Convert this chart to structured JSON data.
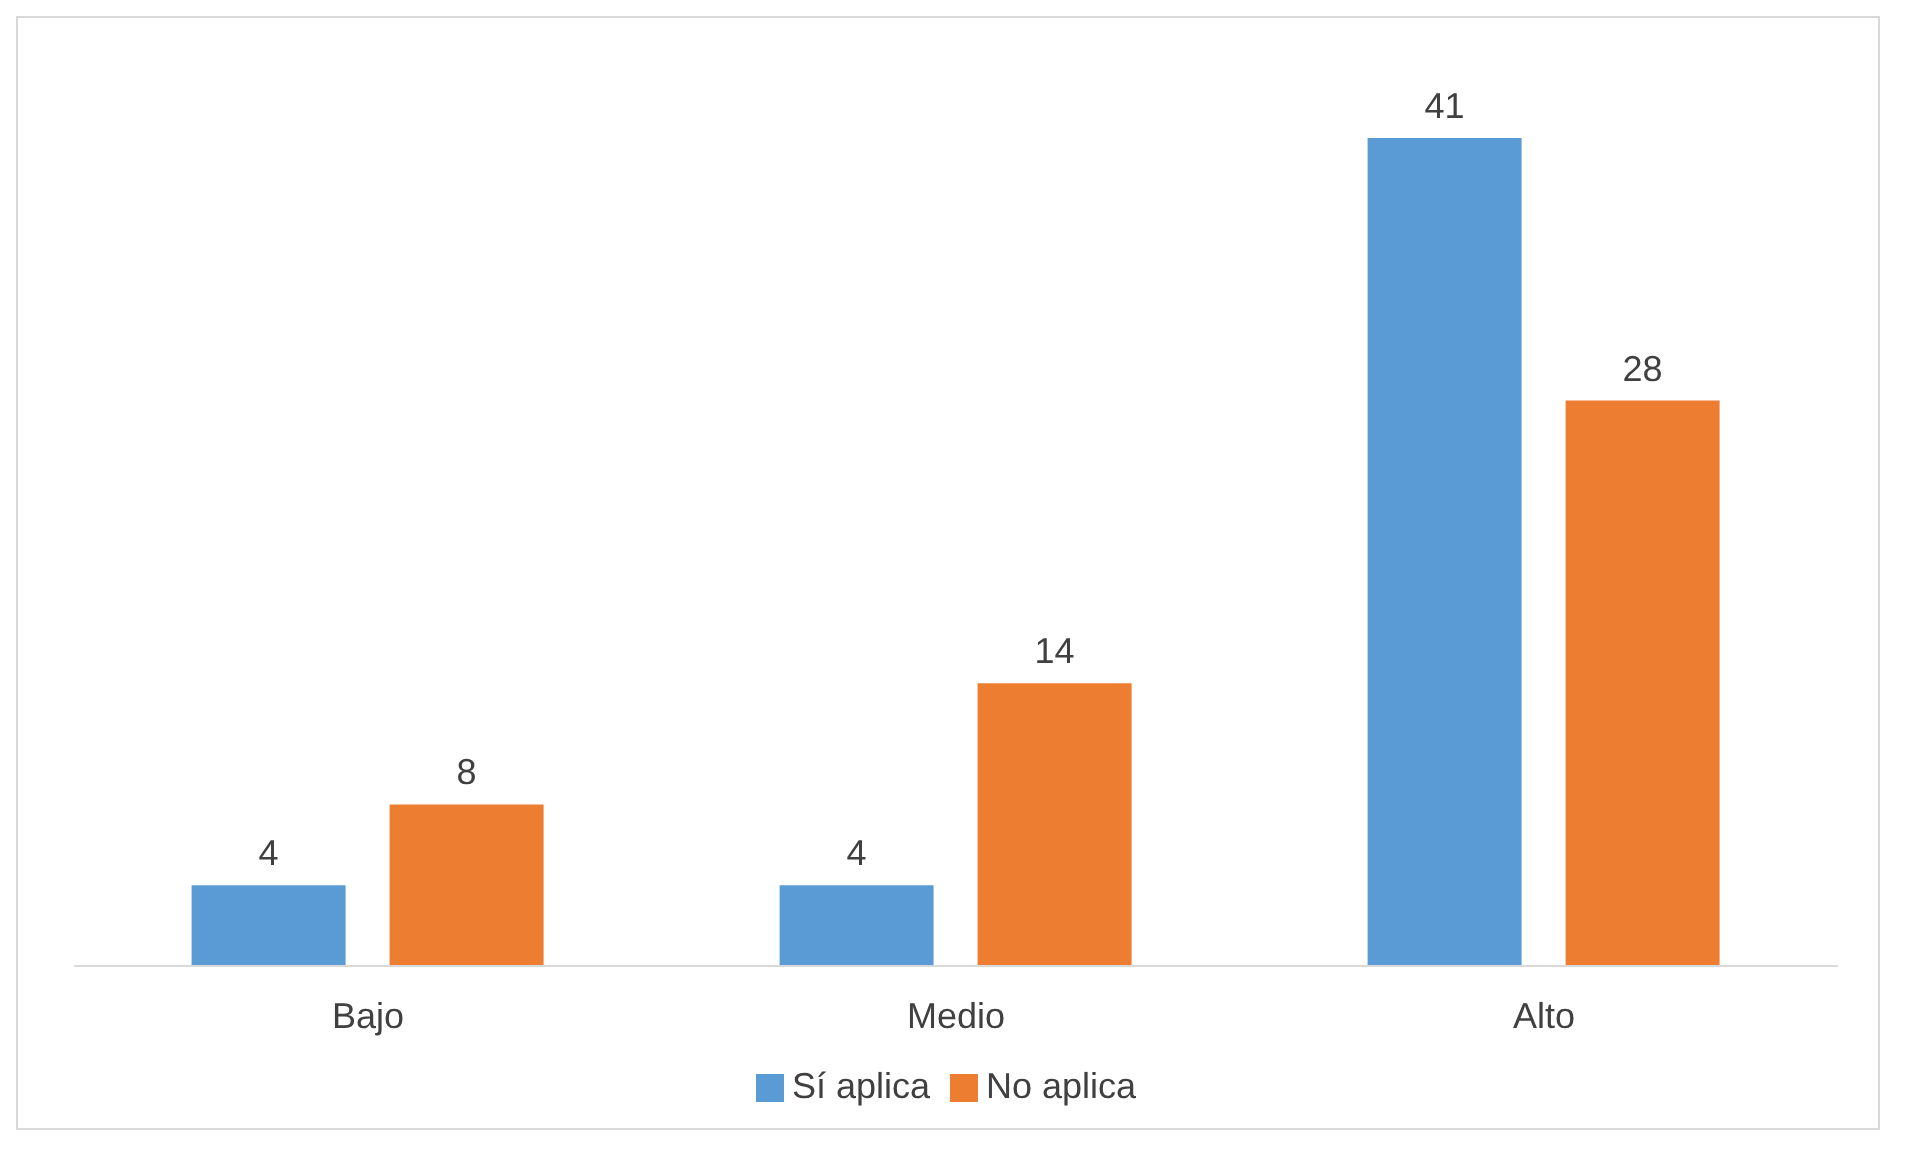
{
  "chart_data": {
    "type": "bar",
    "categories": [
      "Bajo",
      "Medio",
      "Alto"
    ],
    "series": [
      {
        "name": "Sí aplica",
        "color": "#5b9bd5",
        "values": [
          4,
          4,
          41
        ]
      },
      {
        "name": "No aplica",
        "color": "#ed7d31",
        "values": [
          8,
          14,
          28
        ]
      }
    ],
    "data_labels": true,
    "legend": "bottom",
    "grid": false
  }
}
